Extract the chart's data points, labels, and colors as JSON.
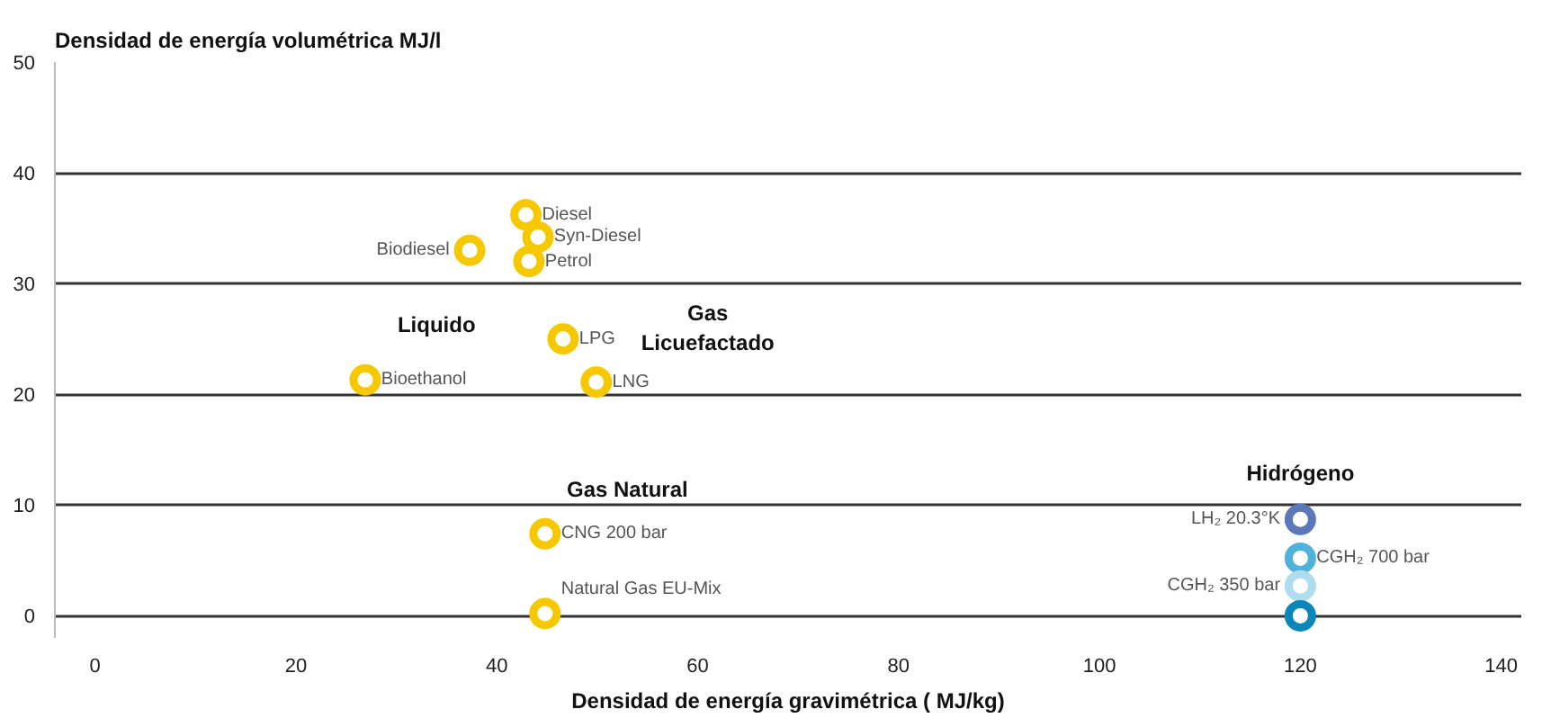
{
  "chart_data": {
    "type": "scatter",
    "ylabel": "Densidad de energía volumétrica MJ/l",
    "xlabel": "Densidad de energía gravimétrica ( MJ/kg)",
    "xlim": [
      -4,
      142
    ],
    "ylim": [
      -2,
      50
    ],
    "xticks": [
      0,
      20,
      40,
      60,
      80,
      100,
      120,
      140
    ],
    "yticks": [
      0,
      10,
      20,
      30,
      40,
      50
    ],
    "grid": "y",
    "legend": false,
    "marker": "circle",
    "annotations": [
      "Liquido",
      "Gas\nLicuefactado",
      "Gas Natural",
      "Hidrógeno"
    ],
    "series": [
      {
        "name": "Diesel",
        "color": "#f5c800",
        "x": [
          42.9
        ],
        "values": [
          36.2
        ]
      },
      {
        "name": "Syn-Diesel",
        "color": "#f5c800",
        "x": [
          44.1
        ],
        "values": [
          34.2
        ]
      },
      {
        "name": "Petrol",
        "color": "#f5c800",
        "x": [
          43.2
        ],
        "values": [
          32.0
        ]
      },
      {
        "name": "Biodiesel",
        "color": "#f5c800",
        "x": [
          37.3
        ],
        "values": [
          33.0
        ]
      },
      {
        "name": "Bioethanol",
        "color": "#f5c800",
        "x": [
          26.9
        ],
        "values": [
          21.3
        ]
      },
      {
        "name": "LPG",
        "color": "#f5c800",
        "x": [
          46.6
        ],
        "values": [
          25.0
        ]
      },
      {
        "name": "LNG",
        "color": "#f5c800",
        "x": [
          49.9
        ],
        "values": [
          21.1
        ]
      },
      {
        "name": "CNG 200 bar",
        "color": "#f5c800",
        "x": [
          44.8
        ],
        "values": [
          7.4
        ]
      },
      {
        "name": "Natural Gas EU-Mix",
        "color": "#f5c800",
        "x": [
          44.8
        ],
        "values": [
          0.2
        ]
      },
      {
        "name": "LH₂ 20.3°K",
        "color": "#5b79b8",
        "x": [
          120
        ],
        "values": [
          8.7
        ]
      },
      {
        "name": "CGH₂ 700 bar",
        "color": "#4fb3d9",
        "x": [
          120
        ],
        "values": [
          5.2
        ]
      },
      {
        "name": "CGH₂ 350 bar",
        "color": "#b0dcef",
        "x": [
          120
        ],
        "values": [
          2.7
        ]
      },
      {
        "color": "#0a86b8",
        "x": [
          120
        ],
        "values": [
          0
        ]
      }
    ]
  }
}
